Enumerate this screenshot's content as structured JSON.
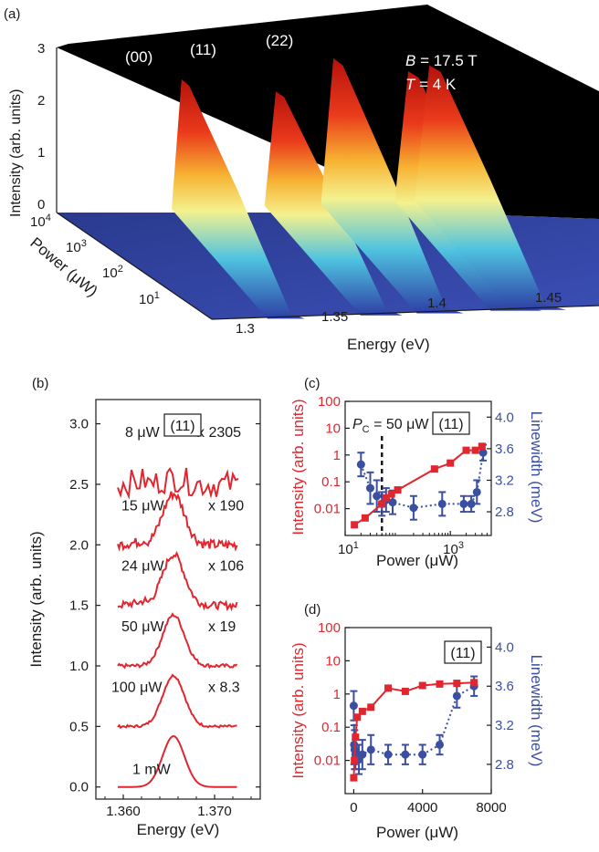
{
  "chart_data": [
    {
      "panel": "(a)",
      "type": "surface-3d",
      "zlabel": "Intensity (arb. units)",
      "ylabel": "Power (μW)",
      "xlabel": "Energy (eV)",
      "z_ticks": [
        "0",
        "1",
        "2",
        "3"
      ],
      "y_ticks": [
        "10^4",
        "10^3",
        "10^2",
        "10^1"
      ],
      "x_ticks": [
        "1.3",
        "1.35",
        "1.4",
        "1.45"
      ],
      "peak_labels": [
        "(00)",
        "(11)",
        "(22)"
      ],
      "annotation_B": "B = 17.5 T",
      "annotation_T": "T = 4 K",
      "peaks": [
        {
          "energy": 1.322,
          "height": 2.5
        },
        {
          "energy": 1.366,
          "height": 2.2
        },
        {
          "energy": 1.393,
          "height": 2.8
        },
        {
          "energy": 1.428,
          "height": 2.5
        },
        {
          "energy": 1.438,
          "height": 2.6
        }
      ]
    },
    {
      "panel": "(b)",
      "type": "line",
      "xlabel": "Energy (eV)",
      "ylabel": "Intensity (arb. units)",
      "xlim": [
        1.357,
        1.375
      ],
      "ylim": [
        -0.1,
        3.2
      ],
      "x_ticks": [
        "1.360",
        "1.370"
      ],
      "y_ticks": [
        "0.0",
        "0.5",
        "1.0",
        "1.5",
        "2.0",
        "2.5",
        "3.0"
      ],
      "tag": "(11)",
      "series": [
        {
          "name": "1 mW",
          "offset": 0.0,
          "factor": ""
        },
        {
          "name": "100 μW",
          "offset": 0.5,
          "factor": "x 8.3"
        },
        {
          "name": "50 μW",
          "offset": 1.0,
          "factor": "x 19"
        },
        {
          "name": "24 μW",
          "offset": 1.5,
          "factor": "x 106"
        },
        {
          "name": "15 μW",
          "offset": 2.0,
          "factor": "x 190"
        },
        {
          "name": "8 μW",
          "offset": 2.5,
          "factor": "x 2305"
        }
      ]
    },
    {
      "panel": "(c)",
      "type": "scatter",
      "xlabel": "Power (μW)",
      "ylabel_left": "Intensity (arb. units)",
      "ylabel_right": "Linewidth (meV)",
      "x_scale": "log",
      "xlim": [
        10,
        6000
      ],
      "ylim_left": [
        0.001,
        100
      ],
      "ylim_right": [
        2.5,
        4.2
      ],
      "y_ticks_left": [
        "100",
        "10",
        "1",
        "0.1",
        "0.01"
      ],
      "y_ticks_right": [
        "4.0",
        "3.6",
        "3.2",
        "2.8"
      ],
      "x_tick_values": [
        10,
        1000
      ],
      "tag": "(11)",
      "annotation": "P_C = 50 μW",
      "vline": 50,
      "intensity": {
        "x": [
          15,
          24,
          50,
          60,
          76,
          100,
          500,
          1000,
          2000,
          3000,
          4000
        ],
        "y": [
          0.0025,
          0.0045,
          0.015,
          0.025,
          0.035,
          0.05,
          0.3,
          0.5,
          1.5,
          1.5,
          2.1
        ]
      },
      "linewidth": {
        "x": [
          20,
          30,
          40,
          50,
          60,
          80,
          200,
          700,
          1800,
          2500,
          3200,
          4200
        ],
        "y": [
          3.4,
          3.1,
          3.0,
          2.9,
          2.95,
          2.92,
          2.85,
          2.9,
          2.9,
          2.9,
          3.05,
          3.55
        ],
        "err": [
          0.15,
          0.2,
          0.2,
          0.15,
          0.15,
          0.15,
          0.15,
          0.15,
          0.1,
          0.1,
          0.15,
          0.1
        ]
      }
    },
    {
      "panel": "(d)",
      "type": "scatter",
      "xlabel": "Power (μW)",
      "ylabel_left": "Intensity (arb. units)",
      "ylabel_right": "Linewidth (meV)",
      "xlim": [
        -500,
        8000
      ],
      "ylim_left": [
        0.001,
        100
      ],
      "ylim_right": [
        2.5,
        4.2
      ],
      "x_ticks": [
        "0",
        "4000",
        "8000"
      ],
      "y_ticks_left": [
        "100",
        "10",
        "1",
        "0.1",
        "0.01"
      ],
      "y_ticks_right": [
        "4.0",
        "3.6",
        "3.2",
        "2.8"
      ],
      "tag": "(11)",
      "intensity": {
        "x": [
          0,
          40,
          100,
          200,
          500,
          1000,
          2000,
          3000,
          4000,
          5000,
          6000,
          7000
        ],
        "y": [
          0.003,
          0.01,
          0.05,
          0.2,
          0.3,
          0.4,
          1.5,
          1.2,
          1.8,
          2.0,
          2.1,
          2.2
        ]
      },
      "linewidth": {
        "x": [
          0,
          20,
          50,
          100,
          300,
          500,
          1000,
          2000,
          3000,
          4000,
          5000,
          6000,
          7000
        ],
        "y": [
          3.4,
          3.0,
          2.95,
          2.9,
          2.85,
          2.9,
          2.95,
          2.9,
          2.9,
          2.9,
          3.0,
          3.5,
          3.6
        ],
        "err": [
          0.15,
          0.2,
          0.2,
          0.15,
          0.15,
          0.15,
          0.15,
          0.1,
          0.1,
          0.1,
          0.1,
          0.12,
          0.1
        ]
      }
    }
  ]
}
